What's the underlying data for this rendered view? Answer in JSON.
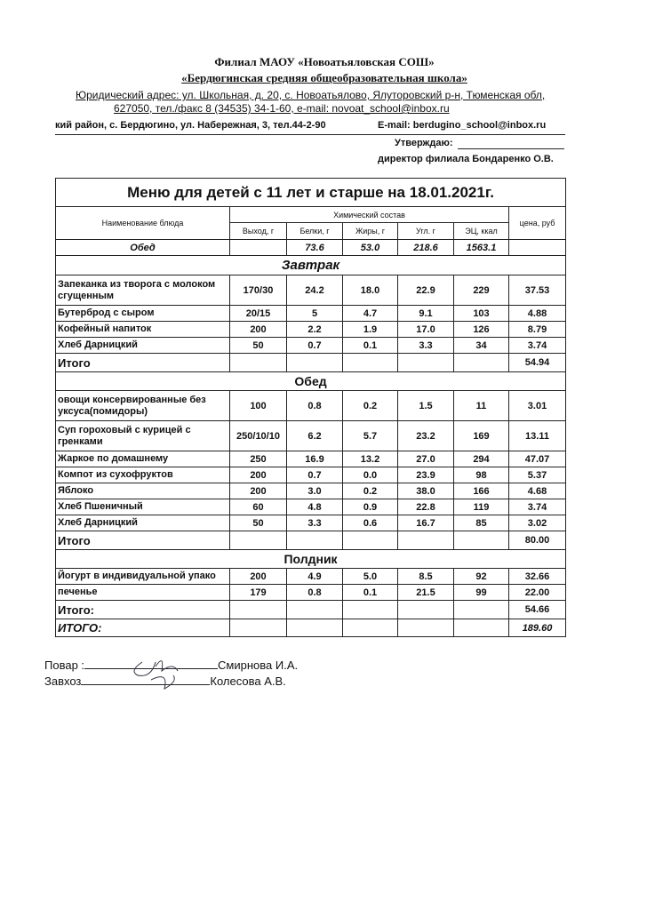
{
  "header": {
    "org": "Филиал МАОУ «Новоатьяловская СОШ»",
    "school": "«Бердюгинская средняя общеобразовательная школа»",
    "address1": "Юридический адрес: ул. Школьная, д. 20, с. Новоатьялово, Ялуторовский р-н, Тюменская обл,",
    "address2": "627050, тел./факс 8 (34535) 34-1-60,  e-mail: novoat_school@inbox.ru",
    "branch_address": "кий район,  с. Бердюгино,   ул. Набережная, 3,  тел.44-2-90",
    "branch_email": "E-mail: berdugino_school@inbox.ru",
    "approve": "Утверждаю:",
    "director": "директор филиала Бондаренко О.В."
  },
  "table": {
    "title": "Меню для детей с 11 лет и старше на 18.01.2021г.",
    "columns": {
      "name": "Наименование блюда",
      "chem": "Химический состав",
      "output": "Выход, г",
      "protein": "Белки, г",
      "fat": "Жиры, г",
      "carbs": "Угл. г",
      "energy": "ЭЦ, ккал",
      "price": "цена, руб"
    },
    "summary": {
      "label": "Обед",
      "values": [
        "73.6",
        "53.0",
        "218.6",
        "1563.1"
      ]
    },
    "sections": [
      {
        "title": "Завтрак",
        "rows": [
          {
            "name": "Запеканка из творога с молоком сгущенным",
            "cells": [
              "170/30",
              "24.2",
              "18.0",
              "22.9",
              "229",
              "37.53"
            ]
          },
          {
            "name": "Бутерброд с сыром",
            "cells": [
              "20/15",
              "5",
              "4.7",
              "9.1",
              "103",
              "4.88"
            ]
          },
          {
            "name": "Кофейный напиток",
            "cells": [
              "200",
              "2.2",
              "1.9",
              "17.0",
              "126",
              "8.79"
            ]
          },
          {
            "name": "Хлеб Дарницкий",
            "cells": [
              "50",
              "0.7",
              "0.1",
              "3.3",
              "34",
              "3.74"
            ]
          }
        ],
        "total": {
          "label": "Итого",
          "price": "54.94"
        }
      },
      {
        "title": "Обед",
        "rows": [
          {
            "name": "овощи консервированные без уксуса(помидоры)",
            "cells": [
              "100",
              "0.8",
              "0.2",
              "1.5",
              "11",
              "3.01"
            ]
          },
          {
            "name": "Суп гороховый с курицей с гренками",
            "cells": [
              "250/10/10",
              "6.2",
              "5.7",
              "23.2",
              "169",
              "13.11"
            ]
          },
          {
            "name": "Жаркое по домашнему",
            "cells": [
              "250",
              "16.9",
              "13.2",
              "27.0",
              "294",
              "47.07"
            ]
          },
          {
            "name": "Компот из сухофруктов",
            "cells": [
              "200",
              "0.7",
              "0.0",
              "23.9",
              "98",
              "5.37"
            ]
          },
          {
            "name": "Яблоко",
            "cells": [
              "200",
              "3.0",
              "0.2",
              "38.0",
              "166",
              "4.68"
            ]
          },
          {
            "name": "Хлеб Пшеничный",
            "cells": [
              "60",
              "4.8",
              "0.9",
              "22.8",
              "119",
              "3.74"
            ]
          },
          {
            "name": "Хлеб Дарницкий",
            "cells": [
              "50",
              "3.3",
              "0.6",
              "16.7",
              "85",
              "3.02"
            ]
          }
        ],
        "total": {
          "label": "Итого",
          "price": "80.00"
        }
      },
      {
        "title": "Полдник",
        "rows": [
          {
            "name": "Йогурт в индивидуальной упако",
            "cells": [
              "200",
              "4.9",
              "5.0",
              "8.5",
              "92",
              "32.66"
            ]
          },
          {
            "name": "печенье",
            "cells": [
              "179",
              "0.8",
              "0.1",
              "21.5",
              "99",
              "22.00"
            ]
          }
        ],
        "total": {
          "label": "Итого:",
          "price": "54.66"
        }
      }
    ],
    "grand_total": {
      "label": "ИТОГО:",
      "price": "189.60"
    }
  },
  "signatures": [
    {
      "role": "Повар :",
      "name": "Смирнова И.А."
    },
    {
      "role": "Завхоз",
      "name": "Колесова А.В."
    }
  ]
}
